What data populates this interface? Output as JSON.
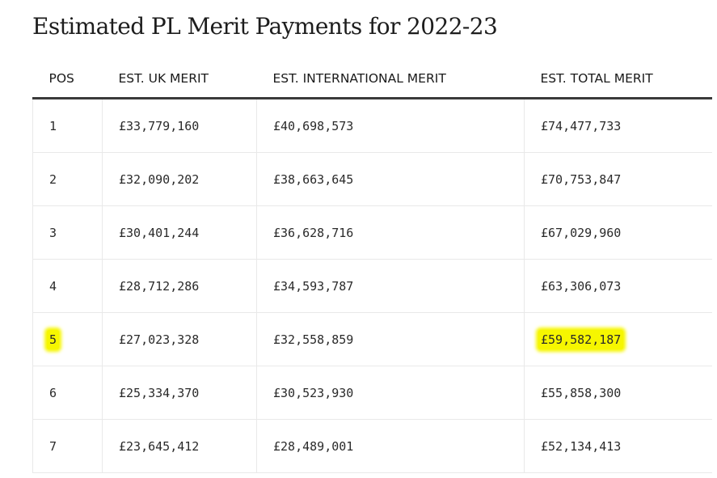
{
  "page": {
    "title": "Estimated PL Merit Payments for 2022-23"
  },
  "table": {
    "headers": {
      "pos": "POS",
      "uk": "EST. UK MERIT",
      "international": "EST. INTERNATIONAL MERIT",
      "total": "EST. TOTAL MERIT"
    },
    "rows": [
      {
        "pos": "1",
        "uk": "£33,779,160",
        "international": "£40,698,573",
        "total": "£74,477,733",
        "highlighted": false
      },
      {
        "pos": "2",
        "uk": "£32,090,202",
        "international": "£38,663,645",
        "total": "£70,753,847",
        "highlighted": false
      },
      {
        "pos": "3",
        "uk": "£30,401,244",
        "international": "£36,628,716",
        "total": "£67,029,960",
        "highlighted": false
      },
      {
        "pos": "4",
        "uk": "£28,712,286",
        "international": "£34,593,787",
        "total": "£63,306,073",
        "highlighted": false
      },
      {
        "pos": "5",
        "uk": "£27,023,328",
        "international": "£32,558,859",
        "total": "£59,582,187",
        "highlighted": true
      },
      {
        "pos": "6",
        "uk": "£25,334,370",
        "international": "£30,523,930",
        "total": "£55,858,300",
        "highlighted": false
      },
      {
        "pos": "7",
        "uk": "£23,645,412",
        "international": "£28,489,001",
        "total": "£52,134,413",
        "highlighted": false
      }
    ]
  },
  "colors": {
    "highlight": "#f6f600"
  }
}
